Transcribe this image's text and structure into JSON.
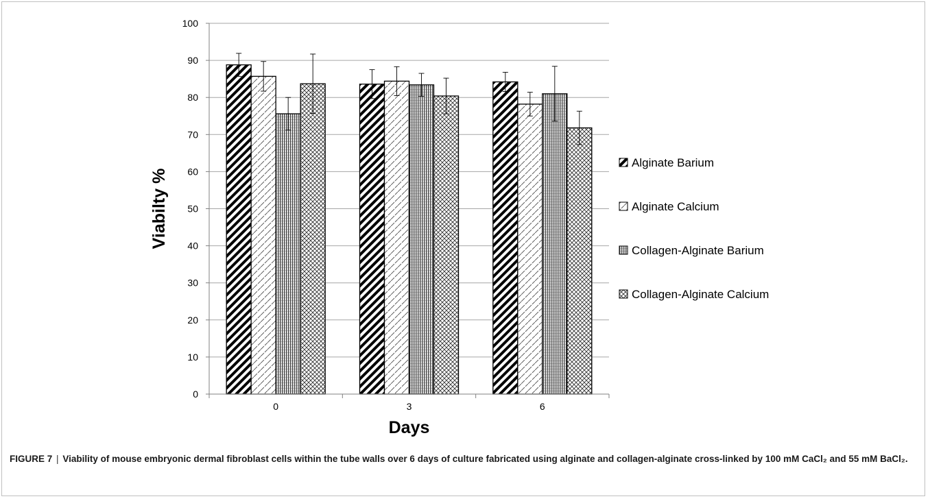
{
  "chart_data": {
    "type": "bar",
    "xlabel": "Days",
    "ylabel": "Viabilty %",
    "categories": [
      "0",
      "3",
      "6"
    ],
    "ylim": [
      0,
      100
    ],
    "yticks": [
      0,
      10,
      20,
      30,
      40,
      50,
      60,
      70,
      80,
      90,
      100
    ],
    "grid": "horizontal",
    "legend": "right",
    "error_bars": true,
    "series": [
      {
        "name": "Alginate Barium",
        "pattern": "wide-diagonal-stripes",
        "values": [
          88.8,
          83.6,
          84.2
        ],
        "errors": [
          3.1,
          3.9,
          2.6
        ]
      },
      {
        "name": "Alginate Calcium",
        "pattern": "dashed-diagonal",
        "values": [
          85.7,
          84.4,
          78.2
        ],
        "errors": [
          4.0,
          3.9,
          3.2
        ]
      },
      {
        "name": "Collagen-Alginate Barium",
        "pattern": "vertical-lines",
        "values": [
          75.6,
          83.4,
          81.0
        ],
        "errors": [
          4.4,
          3.1,
          7.4
        ]
      },
      {
        "name": "Collagen-Alginate Calcium",
        "pattern": "crosshatch",
        "values": [
          83.7,
          80.4,
          71.8
        ],
        "errors": [
          8.0,
          4.8,
          4.5
        ]
      }
    ]
  },
  "caption": {
    "label": "FIGURE 7",
    "separator": "|",
    "text": "Viability of mouse embryonic dermal fibroblast cells within the tube walls over 6 days of culture fabricated using alginate and collagen-alginate cross-linked by 100 mM CaCl₂ and 55 mM BaCl₂."
  }
}
